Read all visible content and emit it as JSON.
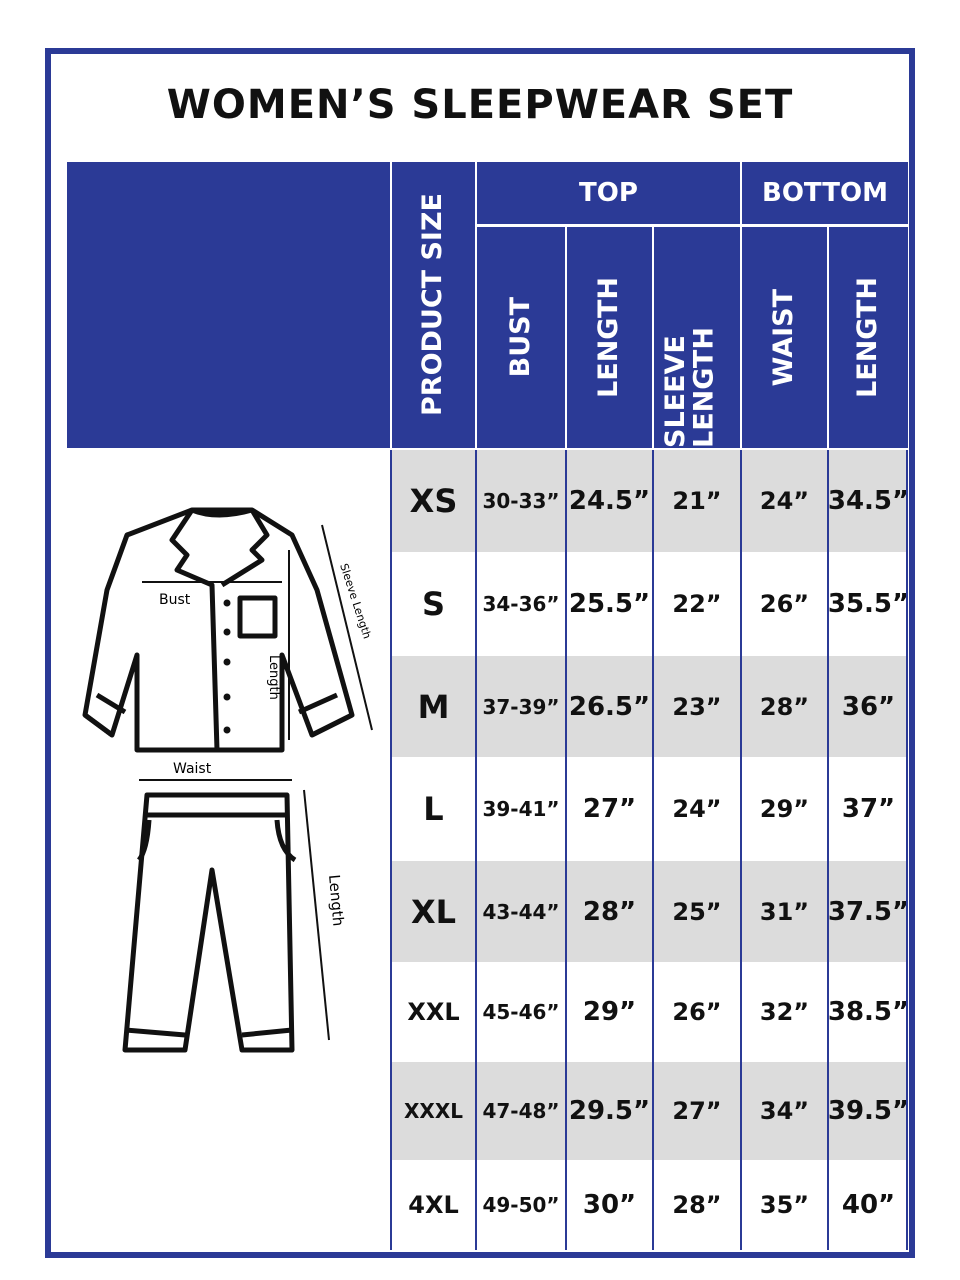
{
  "title": "WOMEN’S SLEEPWEAR SET",
  "colors": {
    "brand_blue": "#2b3a96",
    "row_grey": "#dcdcdc"
  },
  "header": {
    "product_size": "PRODUCT SIZE",
    "top": "TOP",
    "bottom": "BOTTOM",
    "columns": [
      "BUST",
      "LENGTH",
      "SLEEVE LENGTH",
      "WAIST",
      "LENGTH"
    ]
  },
  "illustration": {
    "bust": "Bust",
    "top_length": "Length",
    "sleeve_length": "Sleeve Length",
    "waist": "Waist",
    "bottom_length": "Length"
  },
  "rows": [
    {
      "size": "XS",
      "bust": "30-33”",
      "length": "24.5”",
      "sleeve": "21”",
      "waist": "24”",
      "bottom_length": "34.5”"
    },
    {
      "size": "S",
      "bust": "34-36”",
      "length": "25.5”",
      "sleeve": "22”",
      "waist": "26”",
      "bottom_length": "35.5”"
    },
    {
      "size": "M",
      "bust": "37-39”",
      "length": "26.5”",
      "sleeve": "23”",
      "waist": "28”",
      "bottom_length": "36”"
    },
    {
      "size": "L",
      "bust": "39-41”",
      "length": "27”",
      "sleeve": "24”",
      "waist": "29”",
      "bottom_length": "37”"
    },
    {
      "size": "XL",
      "bust": "43-44”",
      "length": "28”",
      "sleeve": "25”",
      "waist": "31”",
      "bottom_length": "37.5”"
    },
    {
      "size": "XXL",
      "bust": "45-46”",
      "length": "29”",
      "sleeve": "26”",
      "waist": "32”",
      "bottom_length": "38.5”"
    },
    {
      "size": "XXXL",
      "bust": "47-48”",
      "length": "29.5”",
      "sleeve": "27”",
      "waist": "34”",
      "bottom_length": "39.5”"
    },
    {
      "size": "4XL",
      "bust": "49-50”",
      "length": "30”",
      "sleeve": "28”",
      "waist": "35”",
      "bottom_length": "40”"
    }
  ]
}
